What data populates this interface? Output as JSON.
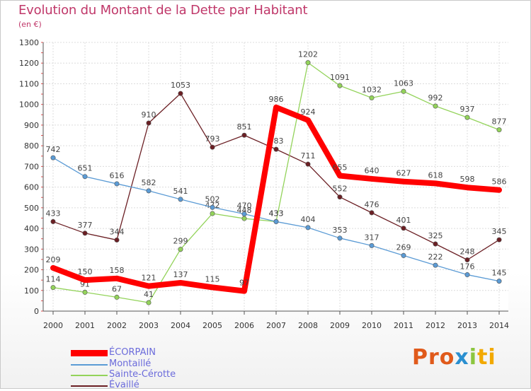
{
  "title": "Evolution du Montant de la Dette par Habitant",
  "subtitle": "(en €)",
  "logo": {
    "parts": [
      "Pro",
      "x",
      "i",
      "ti"
    ]
  },
  "chart_data": {
    "type": "line",
    "x": [
      "2000",
      "2001",
      "2002",
      "2003",
      "2004",
      "2005",
      "2006",
      "2007",
      "2008",
      "2009",
      "2010",
      "2011",
      "2012",
      "2013",
      "2014"
    ],
    "ylim": [
      0,
      1300
    ],
    "yticks": [
      0,
      100,
      200,
      300,
      400,
      500,
      600,
      700,
      800,
      900,
      1000,
      1100,
      1200,
      1300
    ],
    "grid": true,
    "legend_position": "bottom-left",
    "series": [
      {
        "name": "Évaillé",
        "color": "#6b1f24",
        "values": [
          433,
          377,
          344,
          910,
          1053,
          793,
          851,
          783,
          711,
          552,
          476,
          401,
          325,
          248,
          345
        ],
        "labels": [
          "433",
          "377",
          "344",
          "910",
          "1053",
          "793",
          "851",
          "783",
          "711",
          "552",
          "476",
          "401",
          "325",
          "248",
          "345"
        ]
      },
      {
        "name": "Sainte-Cérotte",
        "color": "#93d35a",
        "values": [
          114,
          91,
          67,
          41,
          299,
          472,
          448,
          433,
          1202,
          1091,
          1032,
          1063,
          992,
          937,
          877
        ],
        "labels": [
          "114",
          "91",
          "67",
          "41",
          "299",
          "472",
          "448",
          "433",
          "1202",
          "1091",
          "1032",
          "1063",
          "992",
          "937",
          "877"
        ]
      },
      {
        "name": "Montaillé",
        "color": "#5b9bd5",
        "values": [
          742,
          651,
          616,
          582,
          541,
          502,
          470,
          433,
          404,
          353,
          317,
          269,
          222,
          176,
          145
        ],
        "labels": [
          "742",
          "651",
          "616",
          "582",
          "541",
          "502",
          "470",
          "433",
          "404",
          "353",
          "317",
          "269",
          "222",
          "176",
          "145"
        ]
      },
      {
        "name": "ÉCORPAIN",
        "color": "#ff0000",
        "values": [
          209,
          150,
          158,
          121,
          137,
          115,
          97,
          986,
          924,
          655,
          640,
          627,
          618,
          598,
          586
        ],
        "labels": [
          "209",
          "150",
          "158",
          "121",
          "137",
          "115",
          "97",
          "986",
          "924",
          "655",
          "640",
          "627",
          "618",
          "598",
          "586"
        ]
      }
    ]
  }
}
